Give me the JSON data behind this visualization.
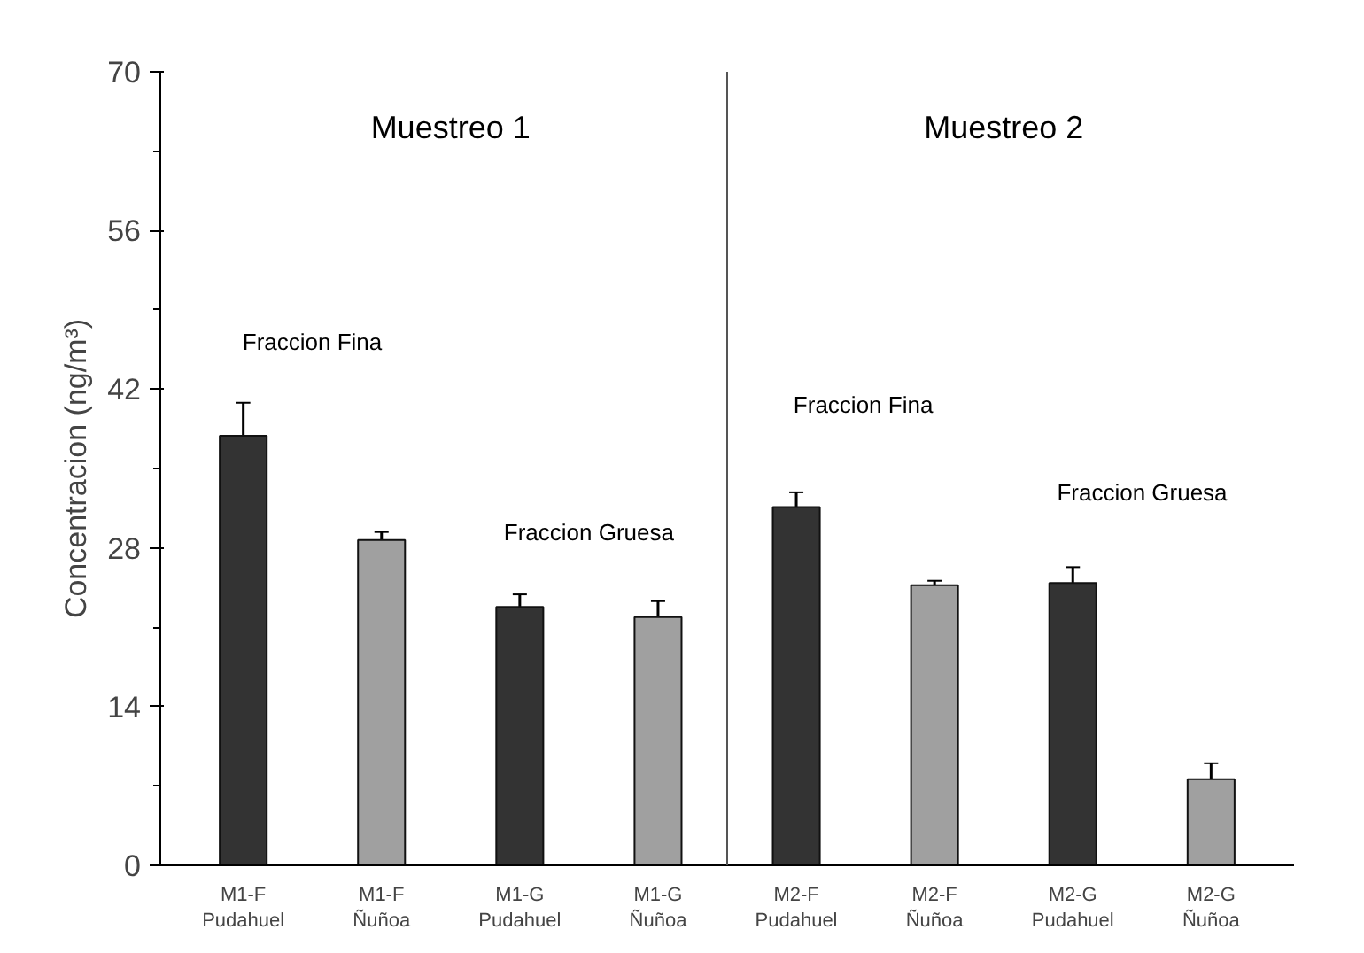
{
  "chart_data": {
    "type": "bar",
    "ylabel": "Concentracion (ng/m³)",
    "categories": [
      "M1-F\nPudahuel",
      "M1-F\nÑuñoa",
      "M1-G\nPudahuel",
      "M1-G\nÑuñoa",
      "M2-F\nPudahuel",
      "M2-F\nÑuñoa",
      "M2-G\nPudahuel",
      "M2-G\nÑuñoa"
    ],
    "values": [
      37.9,
      28.7,
      22.8,
      21.9,
      31.6,
      24.7,
      24.9,
      7.6
    ],
    "errors": [
      2.9,
      0.7,
      1.1,
      1.4,
      1.3,
      0.4,
      1.4,
      1.4
    ],
    "colors": [
      "#333333",
      "#a0a0a0",
      "#333333",
      "#a0a0a0",
      "#333333",
      "#a0a0a0",
      "#333333",
      "#a0a0a0"
    ],
    "ylim": [
      0,
      70
    ],
    "yticks": [
      0,
      14,
      28,
      42,
      56,
      70
    ],
    "annotations": [
      "Muestreo 1",
      "Muestreo 2",
      "Fraccion Fina",
      "Fraccion Gruesa",
      "Fraccion Fina",
      "Fraccion Gruesa"
    ],
    "grid": false
  }
}
